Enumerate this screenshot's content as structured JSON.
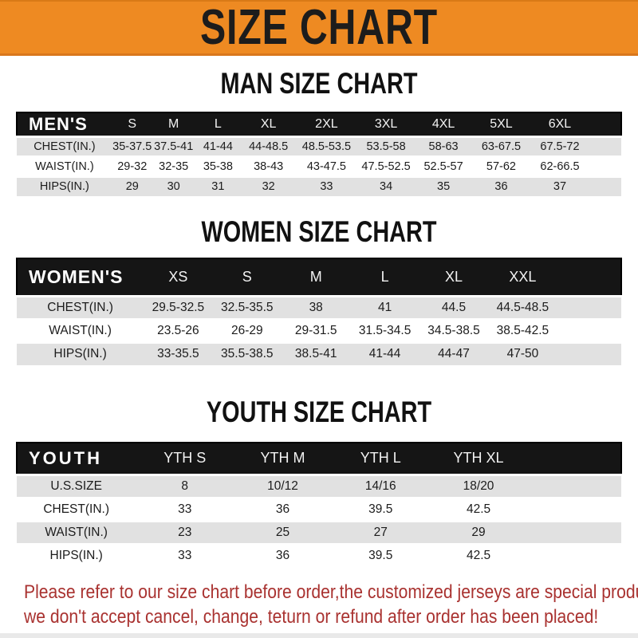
{
  "page": {
    "banner_title": "SIZE CHART",
    "footer_line1": "Please refer to our size chart before order,the customized jerseys are special products,",
    "footer_line2": "we don't accept cancel, change, teturn or refund after order has been placed!",
    "colors": {
      "banner_bg": "#EE8A22",
      "banner_text": "#1C1C1C",
      "table_header_bg": "#151515",
      "table_header_text": "#FFFFFF",
      "row_alt_bg": "#E1E1E1",
      "row_bg": "#FFFFFF",
      "row_text": "#1C1C1C",
      "footer_text": "#A93230"
    }
  },
  "tables": [
    {
      "id": "men",
      "title": "MAN SIZE CHART",
      "header_label": "MEN'S",
      "columns": [
        "S",
        "M",
        "L",
        "XL",
        "2XL",
        "3XL",
        "4XL",
        "5XL",
        "6XL"
      ],
      "rows": [
        {
          "label": "CHEST(IN.)",
          "values": [
            "35-37.5",
            "37.5-41",
            "41-44",
            "44-48.5",
            "48.5-53.5",
            "53.5-58",
            "58-63",
            "63-67.5",
            "67.5-72"
          ]
        },
        {
          "label": "WAIST(IN.)",
          "values": [
            "29-32",
            "32-35",
            "35-38",
            "38-43",
            "43-47.5",
            "47.5-52.5",
            "52.5-57",
            "57-62",
            "62-66.5"
          ]
        },
        {
          "label": "HIPS(IN.)",
          "values": [
            "29",
            "30",
            "31",
            "32",
            "33",
            "34",
            "35",
            "36",
            "37"
          ]
        }
      ]
    },
    {
      "id": "women",
      "title": "WOMEN SIZE CHART",
      "header_label": "WOMEN'S",
      "columns": [
        "XS",
        "S",
        "M",
        "L",
        "XL",
        "XXL"
      ],
      "rows": [
        {
          "label": "CHEST(IN.)",
          "values": [
            "29.5-32.5",
            "32.5-35.5",
            "38",
            "41",
            "44.5",
            "44.5-48.5"
          ]
        },
        {
          "label": "WAIST(IN.)",
          "values": [
            "23.5-26",
            "26-29",
            "29-31.5",
            "31.5-34.5",
            "34.5-38.5",
            "38.5-42.5"
          ]
        },
        {
          "label": "HIPS(IN.)",
          "values": [
            "33-35.5",
            "35.5-38.5",
            "38.5-41",
            "41-44",
            "44-47",
            "47-50"
          ]
        }
      ]
    },
    {
      "id": "youth",
      "title": "YOUTH SIZE CHART",
      "header_label": "YOUTH",
      "columns": [
        "YTH S",
        "YTH M",
        "YTH L",
        "YTH XL"
      ],
      "rows": [
        {
          "label": "U.S.SIZE",
          "values": [
            "8",
            "10/12",
            "14/16",
            "18/20"
          ]
        },
        {
          "label": "CHEST(IN.)",
          "values": [
            "33",
            "36",
            "39.5",
            "42.5"
          ]
        },
        {
          "label": "WAIST(IN.)",
          "values": [
            "23",
            "25",
            "27",
            "29"
          ]
        },
        {
          "label": "HIPS(IN.)",
          "values": [
            "33",
            "36",
            "39.5",
            "42.5"
          ]
        }
      ]
    }
  ],
  "chart_data": [
    {
      "type": "table",
      "title": "MAN SIZE CHART",
      "row_header": "MEN'S",
      "categories": [
        "S",
        "M",
        "L",
        "XL",
        "2XL",
        "3XL",
        "4XL",
        "5XL",
        "6XL"
      ],
      "series": [
        {
          "name": "CHEST(IN.)",
          "values": [
            "35-37.5",
            "37.5-41",
            "41-44",
            "44-48.5",
            "48.5-53.5",
            "53.5-58",
            "58-63",
            "63-67.5",
            "67.5-72"
          ]
        },
        {
          "name": "WAIST(IN.)",
          "values": [
            "29-32",
            "32-35",
            "35-38",
            "38-43",
            "43-47.5",
            "47.5-52.5",
            "52.5-57",
            "57-62",
            "62-66.5"
          ]
        },
        {
          "name": "HIPS(IN.)",
          "values": [
            29,
            30,
            31,
            32,
            33,
            34,
            35,
            36,
            37
          ]
        }
      ]
    },
    {
      "type": "table",
      "title": "WOMEN SIZE CHART",
      "row_header": "WOMEN'S",
      "categories": [
        "XS",
        "S",
        "M",
        "L",
        "XL",
        "XXL"
      ],
      "series": [
        {
          "name": "CHEST(IN.)",
          "values": [
            "29.5-32.5",
            "32.5-35.5",
            "38",
            "41",
            "44.5",
            "44.5-48.5"
          ]
        },
        {
          "name": "WAIST(IN.)",
          "values": [
            "23.5-26",
            "26-29",
            "29-31.5",
            "31.5-34.5",
            "34.5-38.5",
            "38.5-42.5"
          ]
        },
        {
          "name": "HIPS(IN.)",
          "values": [
            "33-35.5",
            "35.5-38.5",
            "38.5-41",
            "41-44",
            "44-47",
            "47-50"
          ]
        }
      ]
    },
    {
      "type": "table",
      "title": "YOUTH SIZE CHART",
      "row_header": "YOUTH",
      "categories": [
        "YTH S",
        "YTH M",
        "YTH L",
        "YTH XL"
      ],
      "series": [
        {
          "name": "U.S.SIZE",
          "values": [
            "8",
            "10/12",
            "14/16",
            "18/20"
          ]
        },
        {
          "name": "CHEST(IN.)",
          "values": [
            33,
            36,
            39.5,
            42.5
          ]
        },
        {
          "name": "WAIST(IN.)",
          "values": [
            23,
            25,
            27,
            29
          ]
        },
        {
          "name": "HIPS(IN.)",
          "values": [
            33,
            36,
            39.5,
            42.5
          ]
        }
      ]
    }
  ]
}
